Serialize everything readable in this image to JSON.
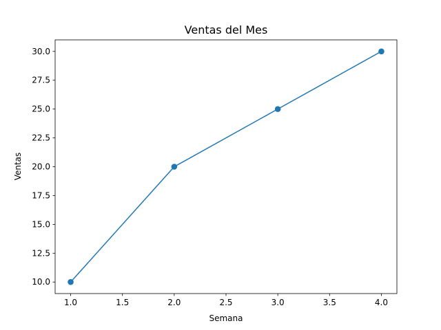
{
  "chart_data": {
    "type": "line",
    "title": "Ventas del Mes",
    "xlabel": "Semana",
    "ylabel": "Ventas",
    "x": [
      1,
      2,
      3,
      4
    ],
    "series": [
      {
        "values": [
          10,
          20,
          25,
          30
        ],
        "color": "#1f77b4",
        "marker": "circle"
      }
    ],
    "xlim": [
      0.85,
      4.15
    ],
    "ylim": [
      9.0,
      31.0
    ],
    "x_ticks": [
      1.0,
      1.5,
      2.0,
      2.5,
      3.0,
      3.5,
      4.0
    ],
    "x_tick_labels": [
      "1.0",
      "1.5",
      "2.0",
      "2.5",
      "3.0",
      "3.5",
      "4.0"
    ],
    "y_ticks": [
      10.0,
      12.5,
      15.0,
      17.5,
      20.0,
      22.5,
      25.0,
      27.5,
      30.0
    ],
    "y_tick_labels": [
      "10.0",
      "12.5",
      "15.0",
      "17.5",
      "20.0",
      "22.5",
      "25.0",
      "27.5",
      "30.0"
    ],
    "grid": false,
    "legend": "none"
  }
}
